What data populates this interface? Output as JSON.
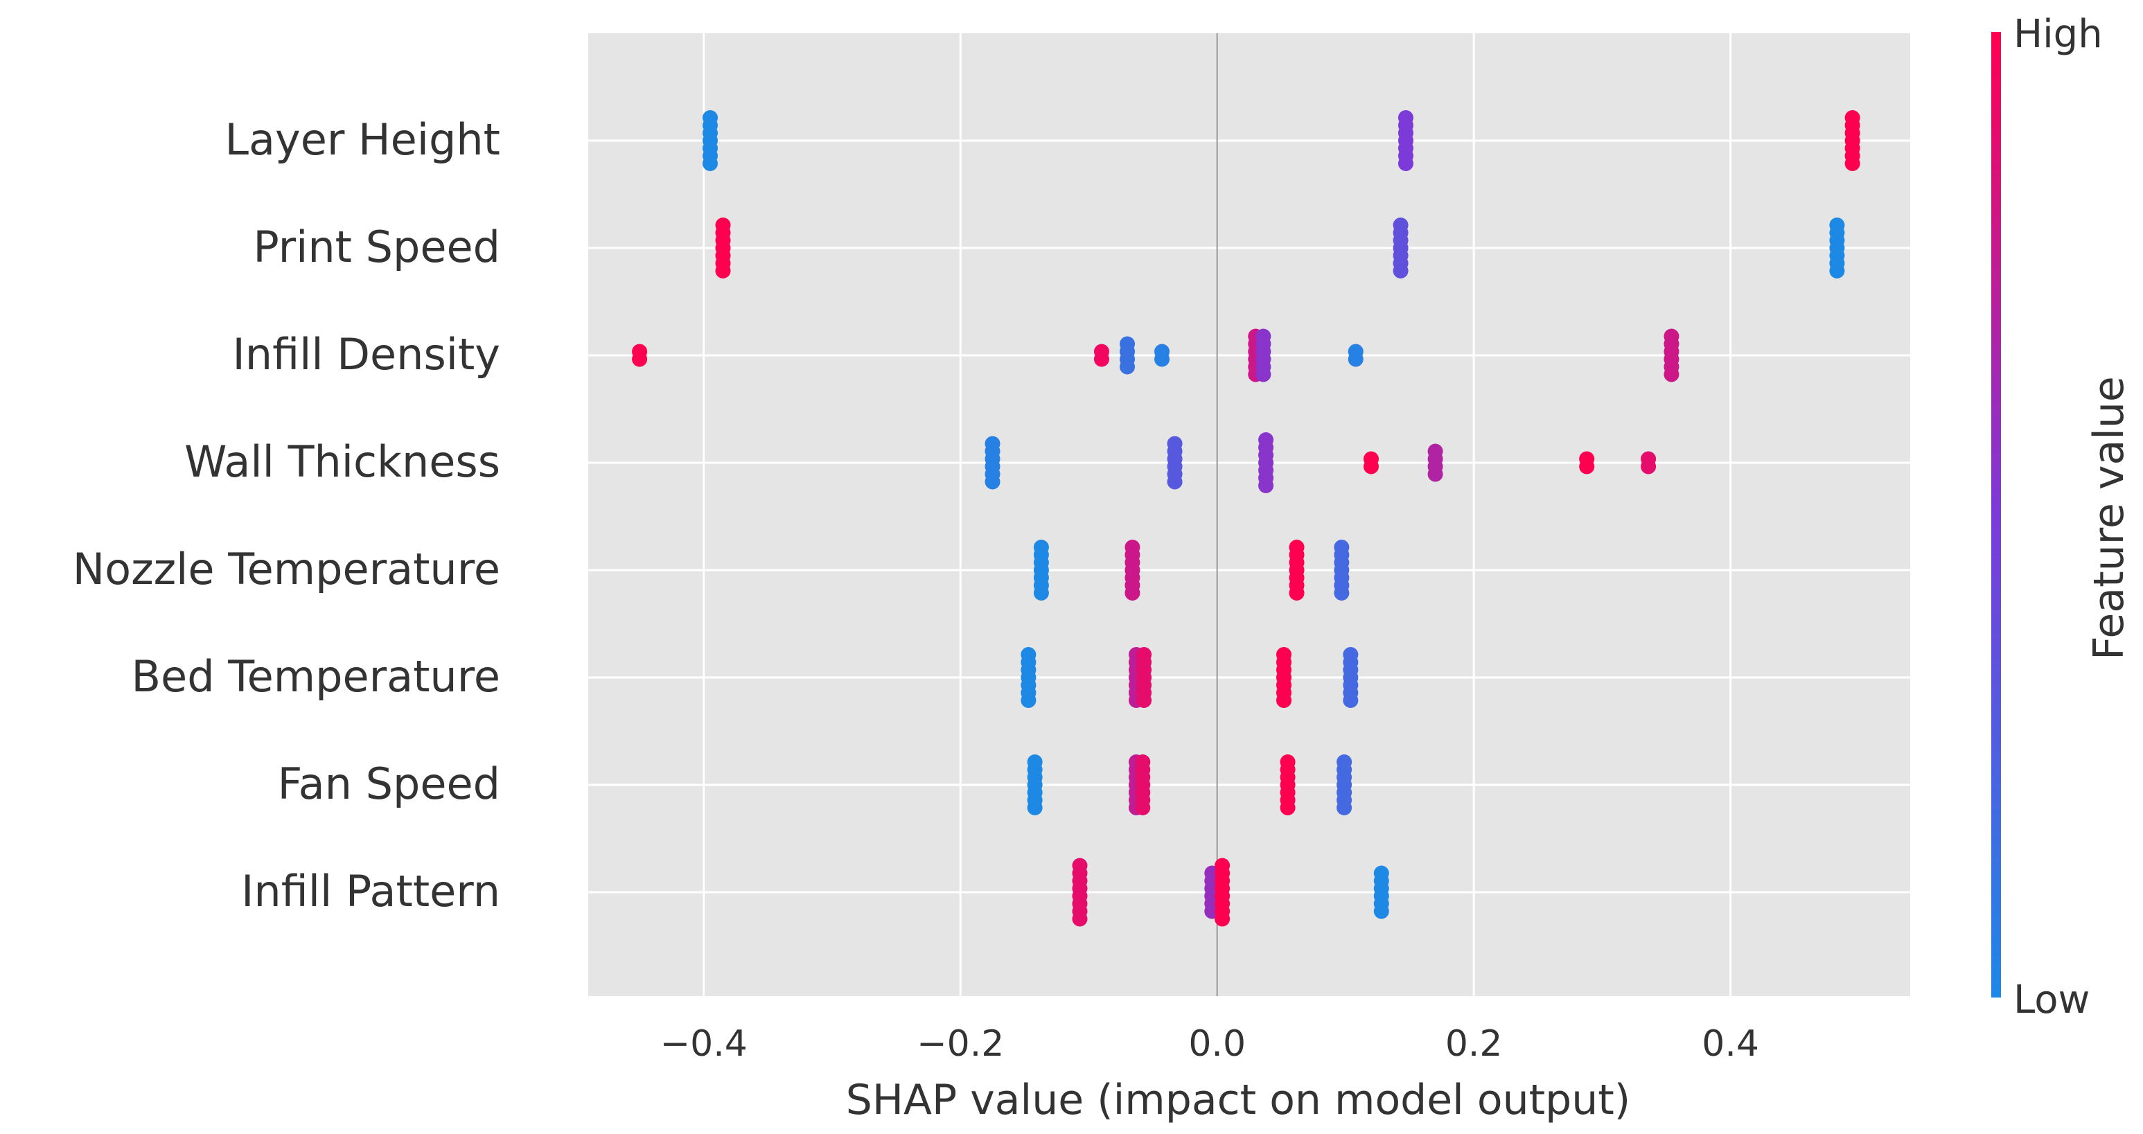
{
  "chart_data": {
    "type": "scatter",
    "subtype": "shap-beeswarm",
    "title": "",
    "xlabel": "SHAP value (impact on model output)",
    "ylabel": "",
    "xlim": [
      -0.49,
      0.54
    ],
    "xticks": [
      -0.4,
      -0.2,
      0.0,
      0.2,
      0.4
    ],
    "xtick_labels": [
      "−0.4",
      "−0.2",
      "0.0",
      "0.2",
      "0.4"
    ],
    "grid": true,
    "colorbar": {
      "label": "Feature value",
      "high_label": "High",
      "low_label": "Low",
      "low_color": "#1e88e5",
      "mid_color": "#7c3ad8",
      "high_color": "#ff0051"
    },
    "features": [
      {
        "name": "Layer Height",
        "clusters": [
          {
            "x": -0.395,
            "count": 7,
            "fv": 0.0
          },
          {
            "x": 0.147,
            "count": 7,
            "fv": 0.5
          },
          {
            "x": 0.495,
            "count": 7,
            "fv": 1.0
          }
        ]
      },
      {
        "name": "Print Speed",
        "clusters": [
          {
            "x": -0.385,
            "count": 7,
            "fv": 1.0
          },
          {
            "x": 0.143,
            "count": 7,
            "fv": 0.35
          },
          {
            "x": 0.483,
            "count": 7,
            "fv": 0.0
          }
        ]
      },
      {
        "name": "Infill Density",
        "clusters": [
          {
            "x": -0.45,
            "count": 2,
            "fv": 1.0
          },
          {
            "x": -0.09,
            "count": 2,
            "fv": 0.95
          },
          {
            "x": -0.07,
            "count": 4,
            "fv": 0.15
          },
          {
            "x": -0.043,
            "count": 2,
            "fv": 0.05
          },
          {
            "x": 0.03,
            "count": 6,
            "fv": 0.8
          },
          {
            "x": 0.036,
            "count": 6,
            "fv": 0.55
          },
          {
            "x": 0.108,
            "count": 2,
            "fv": 0.05
          },
          {
            "x": 0.354,
            "count": 6,
            "fv": 0.8
          }
        ]
      },
      {
        "name": "Wall Thickness",
        "clusters": [
          {
            "x": -0.175,
            "count": 6,
            "fv": 0.05
          },
          {
            "x": -0.033,
            "count": 6,
            "fv": 0.3
          },
          {
            "x": 0.038,
            "count": 7,
            "fv": 0.55
          },
          {
            "x": 0.12,
            "count": 2,
            "fv": 1.0
          },
          {
            "x": 0.17,
            "count": 4,
            "fv": 0.7
          },
          {
            "x": 0.288,
            "count": 2,
            "fv": 1.0
          },
          {
            "x": 0.336,
            "count": 2,
            "fv": 0.9
          }
        ]
      },
      {
        "name": "Nozzle Temperature",
        "clusters": [
          {
            "x": -0.137,
            "count": 7,
            "fv": 0.0
          },
          {
            "x": -0.066,
            "count": 7,
            "fv": 0.8
          },
          {
            "x": 0.062,
            "count": 7,
            "fv": 1.0
          },
          {
            "x": 0.097,
            "count": 7,
            "fv": 0.2
          }
        ]
      },
      {
        "name": "Bed Temperature",
        "clusters": [
          {
            "x": -0.147,
            "count": 7,
            "fv": 0.0
          },
          {
            "x": -0.063,
            "count": 7,
            "fv": 0.75
          },
          {
            "x": -0.057,
            "count": 7,
            "fv": 0.9
          },
          {
            "x": 0.052,
            "count": 7,
            "fv": 1.0
          },
          {
            "x": 0.104,
            "count": 7,
            "fv": 0.2
          }
        ]
      },
      {
        "name": "Fan Speed",
        "clusters": [
          {
            "x": -0.142,
            "count": 7,
            "fv": 0.0
          },
          {
            "x": -0.063,
            "count": 7,
            "fv": 0.75
          },
          {
            "x": -0.058,
            "count": 7,
            "fv": 0.9
          },
          {
            "x": 0.055,
            "count": 7,
            "fv": 1.0
          },
          {
            "x": 0.099,
            "count": 7,
            "fv": 0.2
          }
        ]
      },
      {
        "name": "Infill Pattern",
        "clusters": [
          {
            "x": -0.107,
            "count": 8,
            "fv": 0.9
          },
          {
            "x": -0.004,
            "count": 6,
            "fv": 0.6
          },
          {
            "x": 0.004,
            "count": 8,
            "fv": 1.0
          },
          {
            "x": 0.128,
            "count": 6,
            "fv": 0.0
          }
        ]
      }
    ]
  }
}
